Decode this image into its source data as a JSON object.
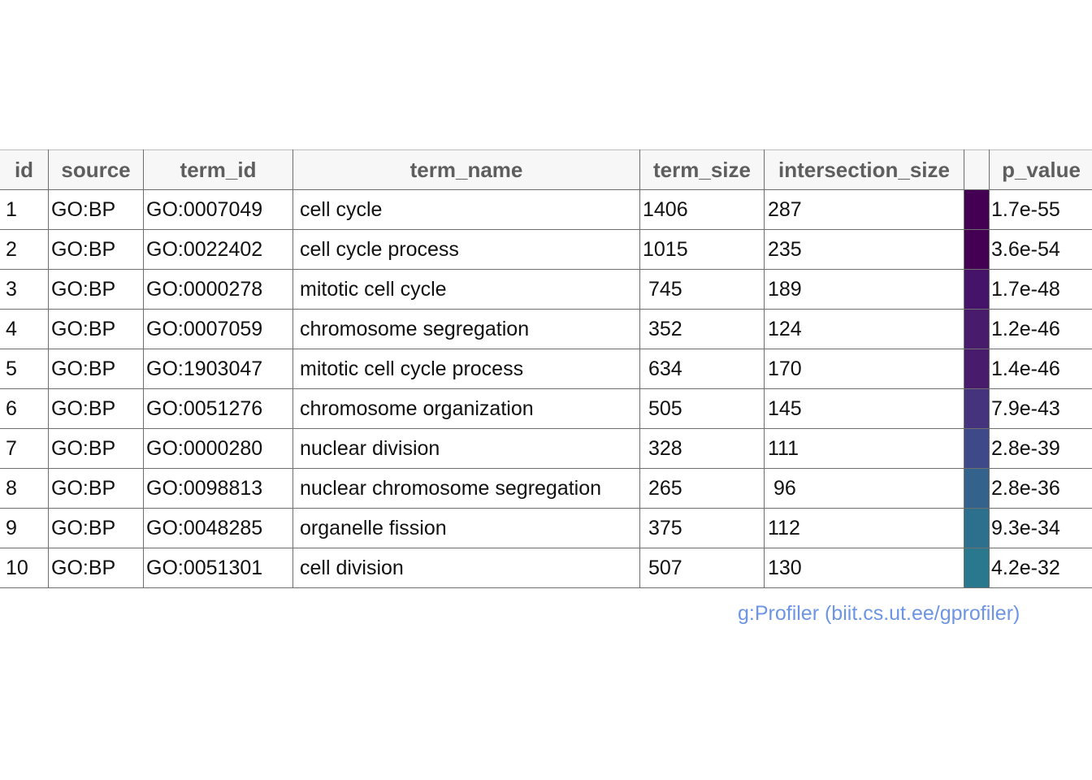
{
  "chart_data": {
    "type": "table",
    "columns": [
      "id",
      "source",
      "term_id",
      "term_name",
      "term_size",
      "intersection_size",
      "",
      "p_value"
    ],
    "rows": [
      {
        "id": "1",
        "source": "GO:BP",
        "term_id": "GO:0007049",
        "term_name": "cell cycle",
        "term_size": "1406",
        "intersection_size": "287",
        "p_value": "1.7e-55",
        "color": "#440154"
      },
      {
        "id": "2",
        "source": "GO:BP",
        "term_id": "GO:0022402",
        "term_name": "cell cycle process",
        "term_size": "1015",
        "intersection_size": "235",
        "p_value": "3.6e-54",
        "color": "#440154"
      },
      {
        "id": "3",
        "source": "GO:BP",
        "term_id": "GO:0000278",
        "term_name": "mitotic cell cycle",
        "term_size": " 745",
        "intersection_size": "189",
        "p_value": "1.7e-48",
        "color": "#46136a"
      },
      {
        "id": "4",
        "source": "GO:BP",
        "term_id": "GO:0007059",
        "term_name": "chromosome segregation",
        "term_size": " 352",
        "intersection_size": "124",
        "p_value": "1.2e-46",
        "color": "#481b6d"
      },
      {
        "id": "5",
        "source": "GO:BP",
        "term_id": "GO:1903047",
        "term_name": "mitotic cell cycle process",
        "term_size": " 634",
        "intersection_size": "170",
        "p_value": "1.4e-46",
        "color": "#481b6d"
      },
      {
        "id": "6",
        "source": "GO:BP",
        "term_id": "GO:0051276",
        "term_name": "chromosome organization",
        "term_size": " 505",
        "intersection_size": "145",
        "p_value": "7.9e-43",
        "color": "#46337e"
      },
      {
        "id": "7",
        "source": "GO:BP",
        "term_id": "GO:0000280",
        "term_name": "nuclear division",
        "term_size": " 328",
        "intersection_size": "111",
        "p_value": "2.8e-39",
        "color": "#3e4989"
      },
      {
        "id": "8",
        "source": "GO:BP",
        "term_id": "GO:0098813",
        "term_name": "nuclear chromosome segregation",
        "term_size": " 265",
        "intersection_size": " 96",
        "p_value": "2.8e-36",
        "color": "#33638d"
      },
      {
        "id": "9",
        "source": "GO:BP",
        "term_id": "GO:0048285",
        "term_name": "organelle fission",
        "term_size": " 375",
        "intersection_size": "112",
        "p_value": "9.3e-34",
        "color": "#2d708e"
      },
      {
        "id": "10",
        "source": "GO:BP",
        "term_id": "GO:0051301",
        "term_name": "cell division",
        "term_size": " 507",
        "intersection_size": "130",
        "p_value": "4.2e-32",
        "color": "#29788e"
      }
    ]
  },
  "credit": "g:Profiler (biit.cs.ut.ee/gprofiler)"
}
